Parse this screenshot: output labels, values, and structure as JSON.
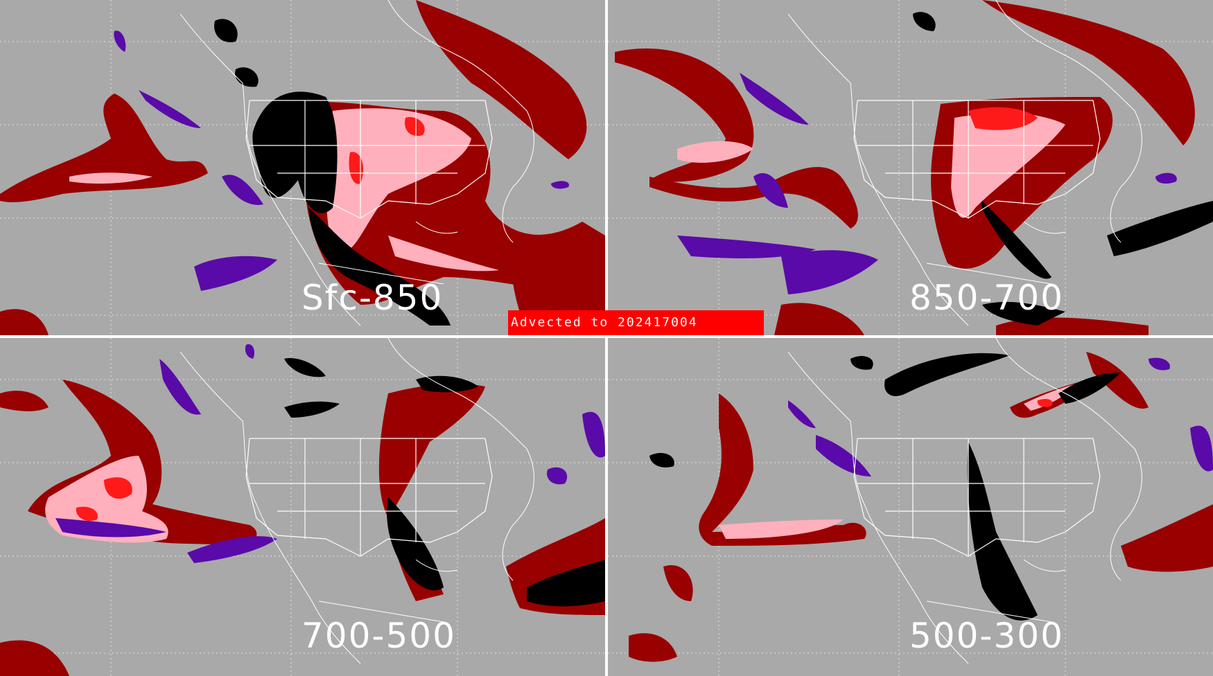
{
  "banner": {
    "text": "Advected to  202417004"
  },
  "panels": [
    {
      "label": "Sfc-850"
    },
    {
      "label": "850-700"
    },
    {
      "label": "700-500"
    },
    {
      "label": "500-300"
    }
  ],
  "colors": {
    "background": "#a9a9a9",
    "dark_red": "#990000",
    "pink": "#ffb0bc",
    "red": "#ff1a1a",
    "black": "#000000",
    "purple": "#5a0aa8",
    "map_lines": "#ffffff",
    "divider": "#ffffff"
  }
}
